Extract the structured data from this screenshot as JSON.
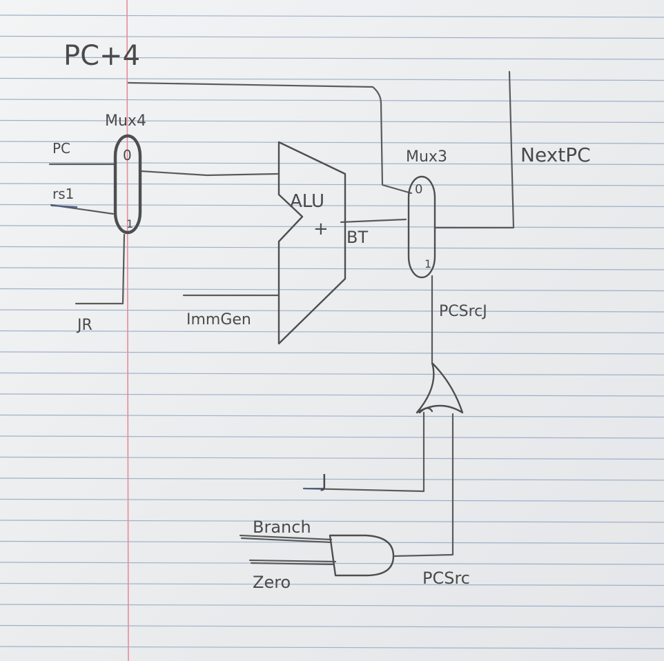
{
  "paper": {
    "line_color": "#9fb0c8",
    "margin_color": "#e88a98",
    "ink_color": "#555555"
  },
  "labels": {
    "pc_plus4": "PC+4",
    "mux4": "Mux4",
    "mux4_in0": "0",
    "mux4_in1": "1",
    "pc": "PC",
    "rs1": "rs1",
    "jr": "JR",
    "alu": "ALU",
    "alu_plus": "+",
    "bt": "BT",
    "immgen": "ImmGen",
    "mux3": "Mux3",
    "mux3_in0": "0",
    "mux3_in1": "1",
    "nextpc": "NextPC",
    "pcsrcj": "PCSrcJ",
    "j": "J",
    "branch": "Branch",
    "zero": "Zero",
    "pcsrc": "PCSrc"
  }
}
